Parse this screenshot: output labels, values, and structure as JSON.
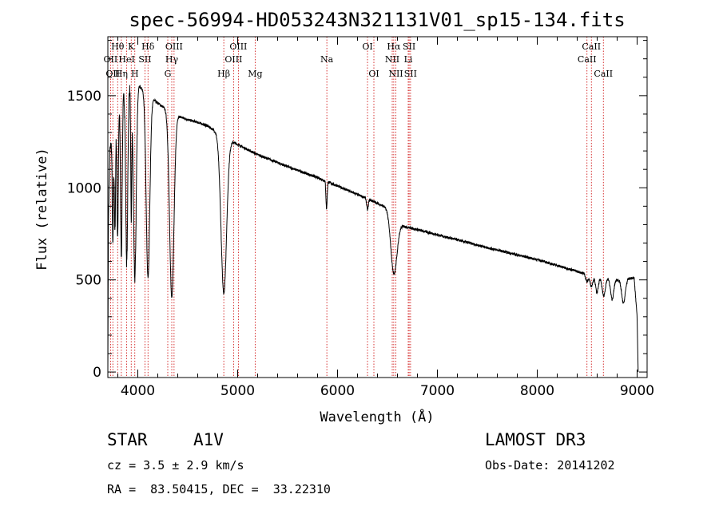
{
  "chart_data": {
    "type": "line",
    "title": "spec-56994-HD053243N321131V01_sp15-134.fits",
    "xlabel": "Wavelength (Å)",
    "ylabel": "Flux (relative)",
    "xlim": [
      3700,
      9100
    ],
    "ylim": [
      -30,
      1820
    ],
    "xticks": [
      4000,
      5000,
      6000,
      7000,
      8000,
      9000
    ],
    "yticks": [
      0,
      500,
      1000,
      1500
    ],
    "xtick_labels": [
      "4000",
      "5000",
      "6000",
      "7000",
      "8000",
      "9000"
    ],
    "ytick_labels": [
      "0",
      "500",
      "1000",
      "1500"
    ],
    "series": [
      {
        "name": "flux",
        "continuum": [
          [
            3700,
            0
          ],
          [
            3705,
            800
          ],
          [
            3720,
            1200
          ],
          [
            3800,
            1450
          ],
          [
            3900,
            1550
          ],
          [
            4000,
            1560
          ],
          [
            4100,
            1510
          ],
          [
            4200,
            1460
          ],
          [
            4300,
            1420
          ],
          [
            4400,
            1390
          ],
          [
            4500,
            1370
          ],
          [
            4600,
            1355
          ],
          [
            4700,
            1335
          ],
          [
            4800,
            1300
          ],
          [
            4900,
            1265
          ],
          [
            5000,
            1235
          ],
          [
            5200,
            1180
          ],
          [
            5500,
            1115
          ],
          [
            5800,
            1055
          ],
          [
            6000,
            1010
          ],
          [
            6300,
            940
          ],
          [
            6500,
            890
          ],
          [
            6600,
            800
          ],
          [
            7000,
            745
          ],
          [
            7500,
            675
          ],
          [
            8000,
            610
          ],
          [
            8500,
            530
          ],
          [
            8800,
            500
          ],
          [
            8970,
            510
          ],
          [
            9000,
            300
          ],
          [
            9010,
            0
          ]
        ],
        "absorption_lines": [
          {
            "center": 3750,
            "depth": 600,
            "width": 6
          },
          {
            "center": 3771,
            "depth": 600,
            "width": 6
          },
          {
            "center": 3798,
            "depth": 700,
            "width": 7
          },
          {
            "center": 3835,
            "depth": 850,
            "width": 8
          },
          {
            "center": 3889,
            "depth": 950,
            "width": 10
          },
          {
            "center": 3934,
            "depth": 700,
            "width": 5
          },
          {
            "center": 3970,
            "depth": 1050,
            "width": 14
          },
          {
            "center": 4102,
            "depth": 1000,
            "width": 18
          },
          {
            "center": 4340,
            "depth": 1000,
            "width": 22
          },
          {
            "center": 4861,
            "depth": 850,
            "width": 28
          },
          {
            "center": 5890,
            "depth": 150,
            "width": 6
          },
          {
            "center": 6300,
            "depth": 60,
            "width": 8
          },
          {
            "center": 6563,
            "depth": 300,
            "width": 30
          },
          {
            "center": 8498,
            "depth": 40,
            "width": 12
          },
          {
            "center": 8542,
            "depth": 60,
            "width": 14
          },
          {
            "center": 8598,
            "depth": 90,
            "width": 14
          },
          {
            "center": 8665,
            "depth": 100,
            "width": 16
          },
          {
            "center": 8750,
            "depth": 110,
            "width": 16
          },
          {
            "center": 8863,
            "depth": 130,
            "width": 18
          }
        ]
      }
    ],
    "line_markers": [
      {
        "wavelength": 3727,
        "label": "OII",
        "row": 2
      },
      {
        "wavelength": 3750,
        "label": "OII",
        "row": 3
      },
      {
        "wavelength": 3798,
        "label": "Hθ",
        "row": 1
      },
      {
        "wavelength": 3835,
        "label": "Hη",
        "row": 3
      },
      {
        "wavelength": 3889,
        "label": "HeI",
        "row": 2
      },
      {
        "wavelength": 3934,
        "label": "K",
        "row": 1
      },
      {
        "wavelength": 3970,
        "label": "H",
        "row": 3
      },
      {
        "wavelength": 4072,
        "label": "SII",
        "row": 2
      },
      {
        "wavelength": 4102,
        "label": "Hδ",
        "row": 1
      },
      {
        "wavelength": 4300,
        "label": "G",
        "row": 3
      },
      {
        "wavelength": 4340,
        "label": "Hγ",
        "row": 2
      },
      {
        "wavelength": 4363,
        "label": "OIII",
        "row": 1
      },
      {
        "wavelength": 4861,
        "label": "Hβ",
        "row": 3
      },
      {
        "wavelength": 4959,
        "label": "OIII",
        "row": 2
      },
      {
        "wavelength": 5007,
        "label": "OIII",
        "row": 1
      },
      {
        "wavelength": 5175,
        "label": "Mg",
        "row": 3
      },
      {
        "wavelength": 5893,
        "label": "Na",
        "row": 2
      },
      {
        "wavelength": 6300,
        "label": "OI",
        "row": 1
      },
      {
        "wavelength": 6364,
        "label": "OI",
        "row": 3
      },
      {
        "wavelength": 6548,
        "label": "NII",
        "row": 2
      },
      {
        "wavelength": 6563,
        "label": "Hα",
        "row": 1
      },
      {
        "wavelength": 6584,
        "label": "NII",
        "row": 3
      },
      {
        "wavelength": 6708,
        "label": "Li",
        "row": 2
      },
      {
        "wavelength": 6717,
        "label": "SII",
        "row": 1
      },
      {
        "wavelength": 6731,
        "label": "SII",
        "row": 3
      },
      {
        "wavelength": 8498,
        "label": "CaII",
        "row": 2
      },
      {
        "wavelength": 8542,
        "label": "CaII",
        "row": 1
      },
      {
        "wavelength": 8662,
        "label": "CaII",
        "row": 3
      }
    ],
    "grid": false,
    "colors": {
      "spectrum": "#000000",
      "markers": "#cc0000",
      "axes": "#000000",
      "background": "#ffffff"
    }
  },
  "footer": {
    "object_type": "STAR",
    "subclass": "A1V",
    "velocity": "cz = 3.5 ± 2.9 km/s",
    "coordinates": "RA =  83.50415, DEC =  33.22310",
    "survey": "LAMOST DR3",
    "obs_date": "Obs-Date: 20141202"
  }
}
